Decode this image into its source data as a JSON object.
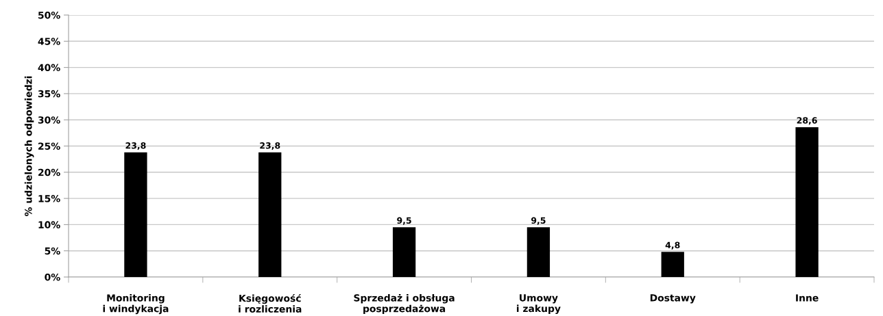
{
  "chart_data": {
    "type": "bar",
    "ylabel": "% udzielonych odpowiedzi",
    "categories": [
      "Monitoring\ni windykacja",
      "Księgowość\ni rozliczenia",
      "Sprzedaż i obsługa\nposprzedażowa",
      "Umowy\ni zakupy",
      "Dostawy",
      "Inne"
    ],
    "values": [
      23.8,
      23.8,
      9.5,
      9.5,
      4.8,
      28.6
    ],
    "value_labels": [
      "23,8",
      "23,8",
      "9,5",
      "9,5",
      "4,8",
      "28,6"
    ],
    "color": "#000000",
    "ylim": [
      0,
      50
    ],
    "yticks": [
      {
        "value": 0,
        "label": "0%"
      },
      {
        "value": 5,
        "label": "5%"
      },
      {
        "value": 10,
        "label": "10%"
      },
      {
        "value": 15,
        "label": "15%"
      },
      {
        "value": 20,
        "label": "20%"
      },
      {
        "value": 25,
        "label": "25%"
      },
      {
        "value": 30,
        "label": "30%"
      },
      {
        "value": 35,
        "label": "35%"
      },
      {
        "value": 40,
        "label": "40%"
      },
      {
        "value": 45,
        "label": "45%"
      },
      {
        "value": 50,
        "label": "50%"
      }
    ],
    "grid": "y"
  }
}
